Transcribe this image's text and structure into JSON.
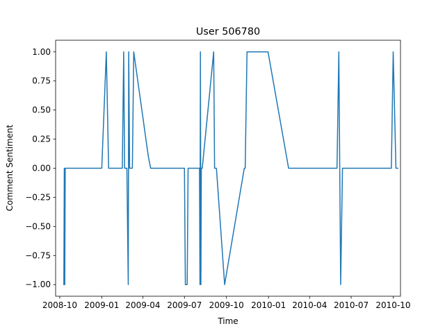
{
  "chart_data": {
    "type": "line",
    "title": "User 506780",
    "xlabel": "Time",
    "ylabel": "Comment Sentiment",
    "x_is_date": true,
    "xlim": [
      "2008-09-22",
      "2010-10-17"
    ],
    "ylim": [
      -1.1,
      1.1
    ],
    "x_ticks": [
      {
        "value": "2008-10-01",
        "label": "2008-10"
      },
      {
        "value": "2009-01-01",
        "label": "2009-01"
      },
      {
        "value": "2009-04-01",
        "label": "2009-04"
      },
      {
        "value": "2009-07-01",
        "label": "2009-07"
      },
      {
        "value": "2009-10-01",
        "label": "2009-10"
      },
      {
        "value": "2010-01-01",
        "label": "2010-01"
      },
      {
        "value": "2010-04-01",
        "label": "2010-04"
      },
      {
        "value": "2010-07-01",
        "label": "2010-07"
      },
      {
        "value": "2010-10-01",
        "label": "2010-10"
      }
    ],
    "y_ticks": [
      {
        "value": -1.0,
        "label": "−1.00"
      },
      {
        "value": -0.75,
        "label": "−0.75"
      },
      {
        "value": -0.5,
        "label": "−0.50"
      },
      {
        "value": -0.25,
        "label": "−0.25"
      },
      {
        "value": 0.0,
        "label": "0.00"
      },
      {
        "value": 0.25,
        "label": "0.25"
      },
      {
        "value": 0.5,
        "label": "0.50"
      },
      {
        "value": 0.75,
        "label": "0.75"
      },
      {
        "value": 1.0,
        "label": "1.00"
      }
    ],
    "grid": false,
    "legend": "none",
    "series": [
      {
        "color": "#1f77b4",
        "points": [
          [
            "2008-10-10",
            -1.0
          ],
          [
            "2008-10-11",
            0.0
          ],
          [
            "2008-10-12",
            -1.0
          ],
          [
            "2008-10-13",
            0.0
          ],
          [
            "2009-01-01",
            0.0
          ],
          [
            "2009-01-11",
            1.0
          ],
          [
            "2009-01-16",
            0.0
          ],
          [
            "2009-02-15",
            0.0
          ],
          [
            "2009-02-18",
            1.0
          ],
          [
            "2009-02-20",
            0.0
          ],
          [
            "2009-02-25",
            0.0
          ],
          [
            "2009-02-28",
            -1.0
          ],
          [
            "2009-03-01",
            1.0
          ],
          [
            "2009-03-03",
            0.0
          ],
          [
            "2009-03-09",
            0.0
          ],
          [
            "2009-03-12",
            1.0
          ],
          [
            "2009-04-13",
            0.1
          ],
          [
            "2009-04-18",
            0.0
          ],
          [
            "2009-07-01",
            0.0
          ],
          [
            "2009-07-03",
            -1.0
          ],
          [
            "2009-07-07",
            -1.0
          ],
          [
            "2009-07-09",
            0.0
          ],
          [
            "2009-08-03",
            0.0
          ],
          [
            "2009-08-04",
            -1.0
          ],
          [
            "2009-08-05",
            1.0
          ],
          [
            "2009-08-06",
            -1.0
          ],
          [
            "2009-08-07",
            0.0
          ],
          [
            "2009-08-09",
            0.0
          ],
          [
            "2009-09-03",
            1.0
          ],
          [
            "2009-09-05",
            0.0
          ],
          [
            "2009-09-09",
            0.0
          ],
          [
            "2009-09-27",
            -1.0
          ],
          [
            "2009-11-09",
            0.0
          ],
          [
            "2009-11-11",
            0.0
          ],
          [
            "2009-11-15",
            1.0
          ],
          [
            "2009-12-31",
            1.0
          ],
          [
            "2010-02-14",
            0.0
          ],
          [
            "2010-05-31",
            0.0
          ],
          [
            "2010-06-04",
            1.0
          ],
          [
            "2010-06-08",
            -1.0
          ],
          [
            "2010-06-12",
            0.0
          ],
          [
            "2010-09-27",
            0.0
          ],
          [
            "2010-10-01",
            1.0
          ],
          [
            "2010-10-07",
            0.0
          ],
          [
            "2010-10-11",
            0.0
          ]
        ]
      }
    ]
  }
}
